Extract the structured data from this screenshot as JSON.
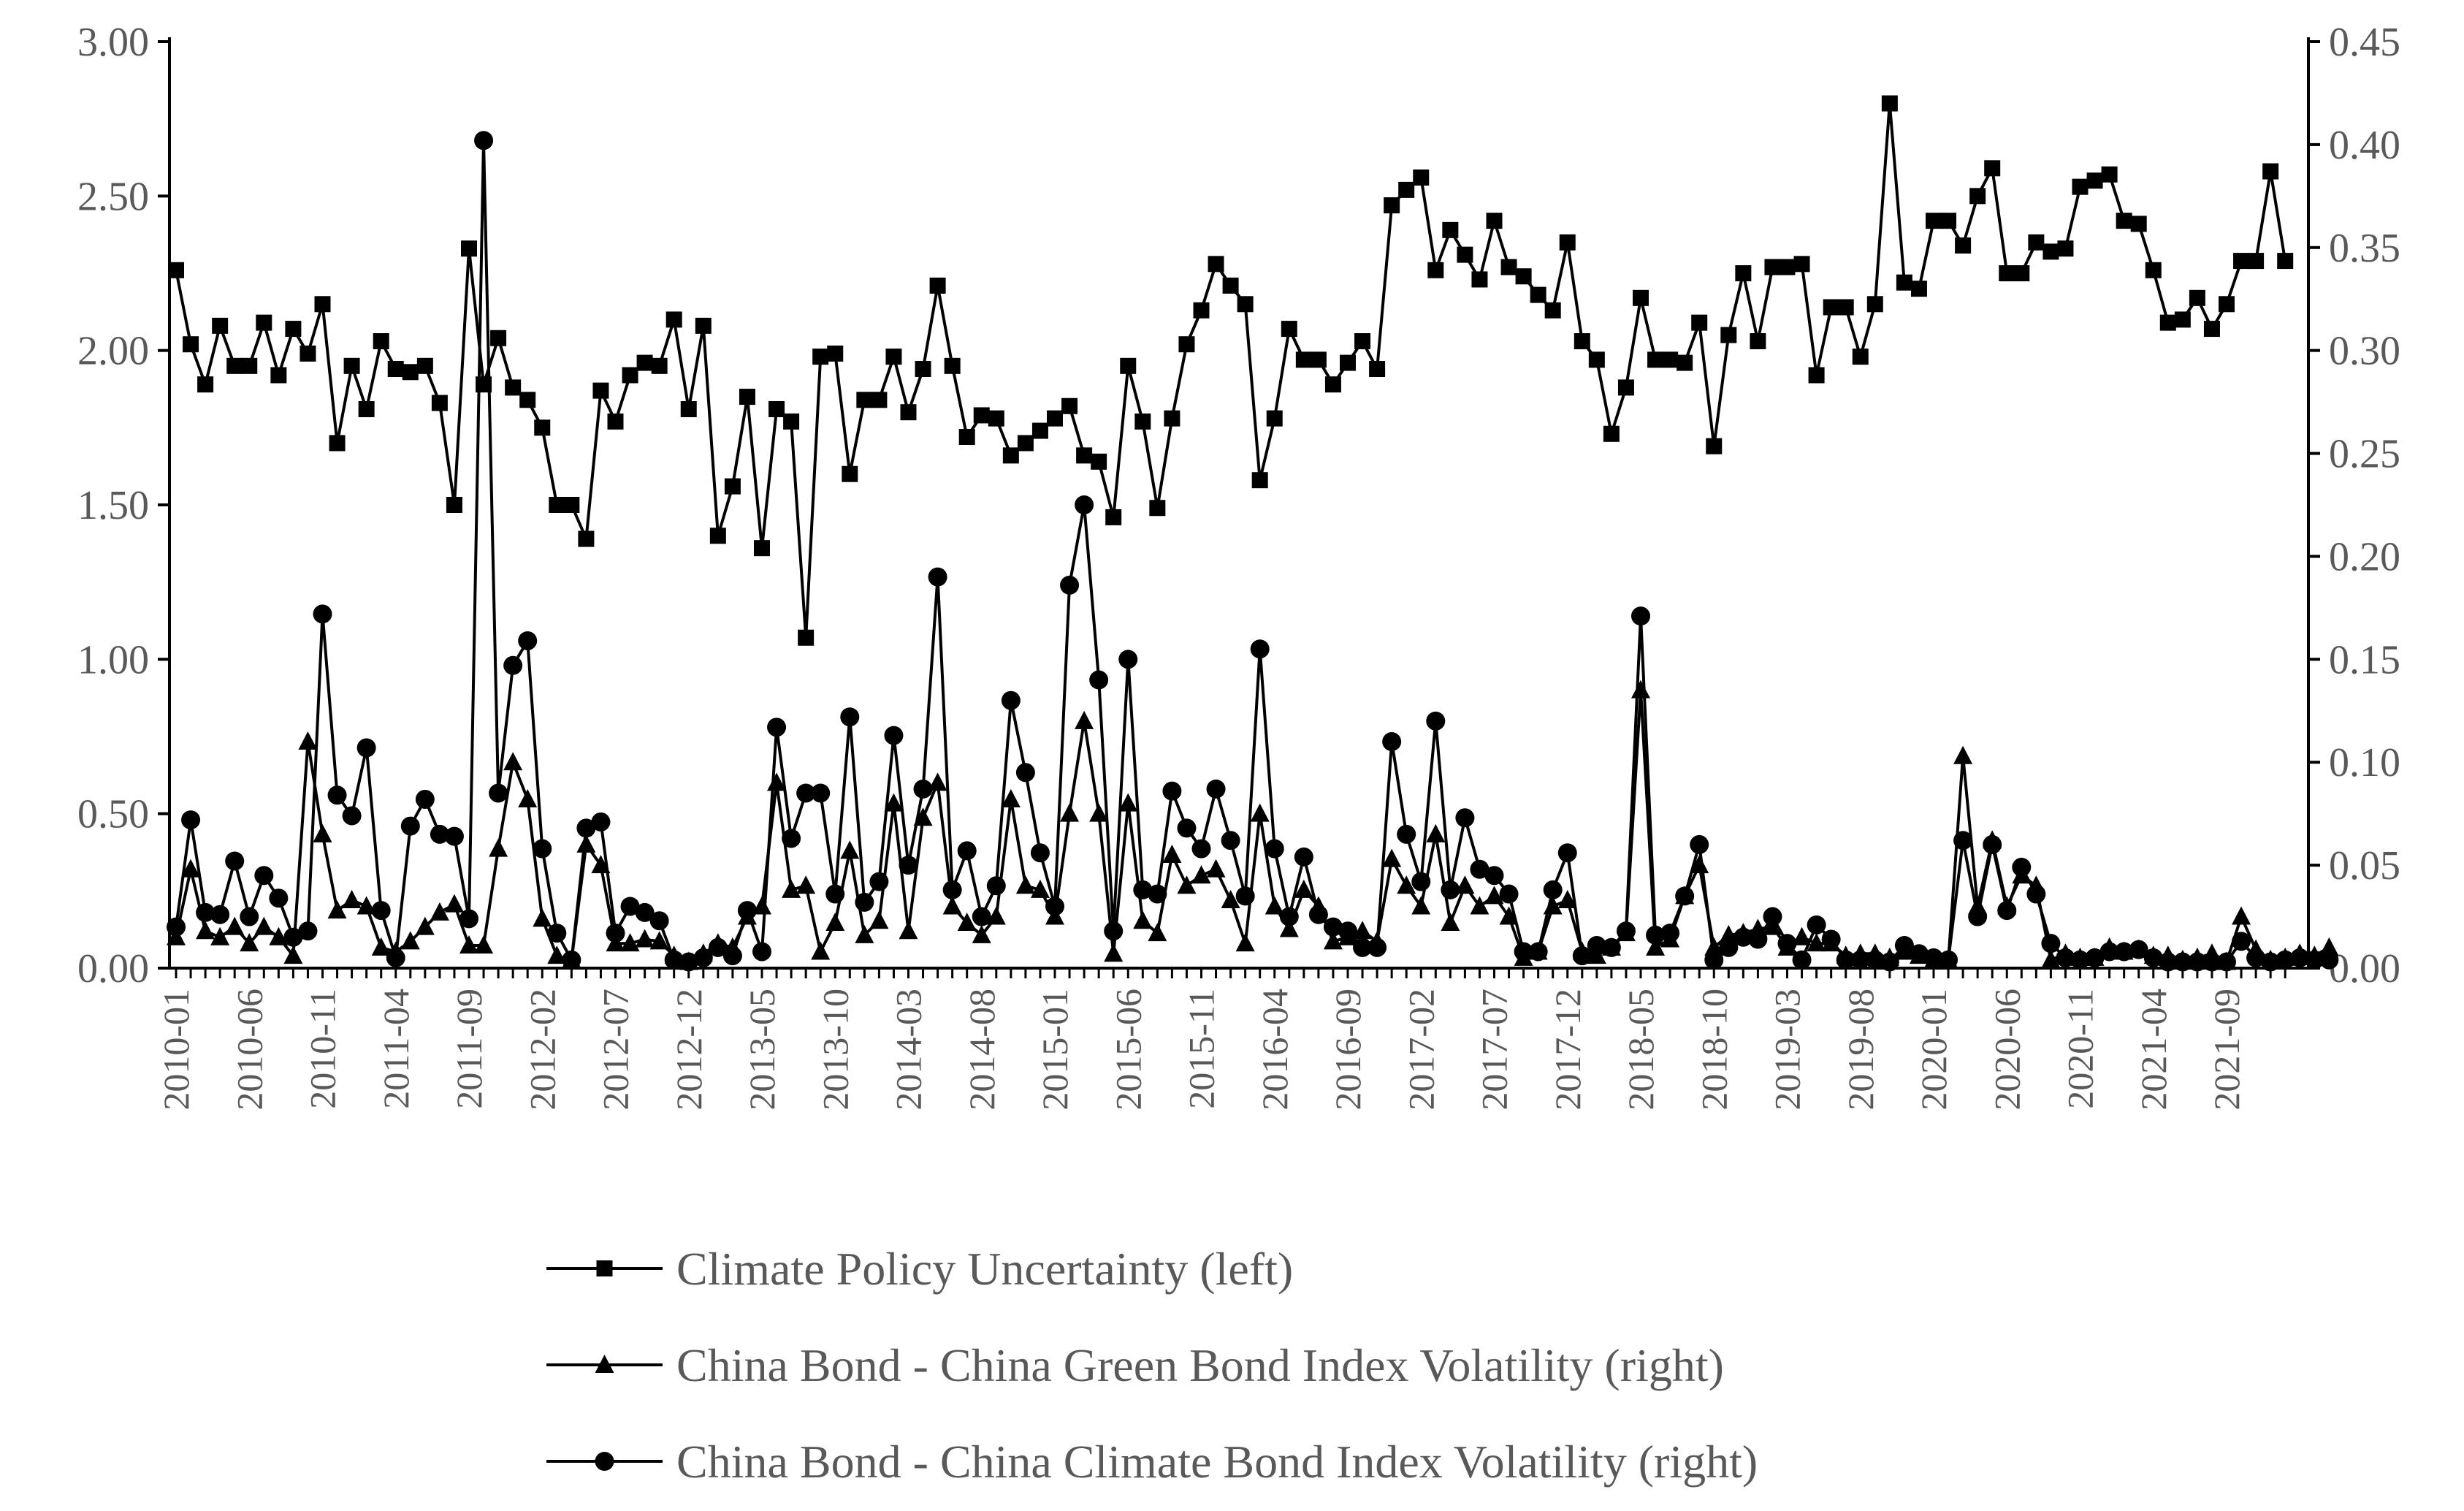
{
  "chart_data": {
    "type": "line",
    "title": "",
    "x_start": "2010-01",
    "x_end": "2021-12",
    "x_tick_labels": [
      "2010-01",
      "2010-06",
      "2010-11",
      "2011-04",
      "2011-09",
      "2012-02",
      "2012-07",
      "2012-12",
      "2013-05",
      "2013-10",
      "2014-03",
      "2014-08",
      "2015-01",
      "2015-06",
      "2015-11",
      "2016-04",
      "2016-09",
      "2017-02",
      "2017-07",
      "2017-12",
      "2018-05",
      "2018-10",
      "2019-03",
      "2019-08",
      "2020-01",
      "2020-06",
      "2020-11",
      "2021-04",
      "2021-09"
    ],
    "y_left": {
      "min": 0,
      "max": 3,
      "ticks": [
        "0.00",
        "0.50",
        "1.00",
        "1.50",
        "2.00",
        "2.50",
        "3.00"
      ]
    },
    "y_right": {
      "min": 0,
      "max": 0.45,
      "ticks": [
        "0.00",
        "0.05",
        "0.10",
        "0.15",
        "0.20",
        "0.25",
        "0.30",
        "0.35",
        "0.40",
        "0.45"
      ]
    },
    "series": [
      {
        "name": "Climate Policy Uncertainty (left)",
        "axis": "left",
        "marker": "square",
        "values": [
          2.26,
          2.02,
          1.89,
          2.08,
          1.95,
          1.95,
          2.09,
          1.92,
          2.07,
          1.99,
          2.15,
          1.7,
          1.95,
          1.81,
          2.03,
          1.94,
          1.93,
          1.95,
          1.83,
          1.5,
          2.33,
          1.89,
          2.04,
          1.88,
          1.84,
          1.75,
          1.5,
          1.5,
          1.39,
          1.87,
          1.77,
          1.92,
          1.96,
          1.95,
          2.1,
          1.81,
          2.08,
          1.4,
          1.56,
          1.85,
          1.36,
          1.81,
          1.77,
          1.07,
          1.98,
          1.99,
          1.6,
          1.84,
          1.84,
          1.98,
          1.8,
          1.94,
          2.21,
          1.95,
          1.72,
          1.79,
          1.78,
          1.66,
          1.7,
          1.74,
          1.78,
          1.82,
          1.66,
          1.64,
          1.46,
          1.95,
          1.77,
          1.49,
          1.78,
          2.02,
          2.13,
          2.28,
          2.21,
          2.15,
          1.58,
          1.78,
          2.07,
          1.97,
          1.97,
          1.89,
          1.96,
          2.03,
          1.94,
          2.47,
          2.52,
          2.56,
          2.26,
          2.39,
          2.31,
          2.23,
          2.42,
          2.27,
          2.24,
          2.18,
          2.13,
          2.35,
          2.03,
          1.97,
          1.73,
          1.88,
          2.17,
          1.97,
          1.97,
          1.96,
          2.09,
          1.69,
          2.05,
          2.25,
          2.03,
          2.27,
          2.27,
          2.28,
          1.92,
          2.14,
          2.14,
          1.98,
          2.15,
          2.8,
          2.22,
          2.2,
          2.42,
          2.42,
          2.34,
          2.5,
          2.59,
          2.25,
          2.25,
          2.35,
          2.32,
          2.33,
          2.53,
          2.55,
          2.57,
          2.42,
          2.41,
          2.26,
          2.09,
          2.1,
          2.17,
          2.07,
          2.15,
          2.29,
          2.29,
          2.58,
          2.29
        ]
      },
      {
        "name": "China Bond - China Green Bond Index Volatility (right)",
        "axis": "right",
        "marker": "triangle",
        "values": [
          0.015,
          0.048,
          0.018,
          0.015,
          0.02,
          0.012,
          0.02,
          0.015,
          0.006,
          0.11,
          0.065,
          0.028,
          0.033,
          0.03,
          0.01,
          0.008,
          0.013,
          0.02,
          0.027,
          0.031,
          0.011,
          0.011,
          0.058,
          0.1,
          0.082,
          0.024,
          0.006,
          0.004,
          0.06,
          0.05,
          0.012,
          0.012,
          0.014,
          0.013,
          0.006,
          0.003,
          0.007,
          0.012,
          0.01,
          0.025,
          0.03,
          0.09,
          0.038,
          0.04,
          0.008,
          0.022,
          0.057,
          0.016,
          0.023,
          0.08,
          0.018,
          0.073,
          0.09,
          0.03,
          0.022,
          0.016,
          0.025,
          0.082,
          0.04,
          0.038,
          0.025,
          0.075,
          0.12,
          0.075,
          0.007,
          0.08,
          0.023,
          0.017,
          0.055,
          0.04,
          0.045,
          0.048,
          0.033,
          0.012,
          0.075,
          0.03,
          0.019,
          0.038,
          0.03,
          0.013,
          0.015,
          0.018,
          0.013,
          0.053,
          0.04,
          0.03,
          0.065,
          0.022,
          0.04,
          0.03,
          0.035,
          0.025,
          0.005,
          0.008,
          0.03,
          0.033,
          0.008,
          0.006,
          0.01,
          0.017,
          0.135,
          0.01,
          0.014,
          0.035,
          0.05,
          0.01,
          0.016,
          0.017,
          0.019,
          0.02,
          0.01,
          0.015,
          0.012,
          0.012,
          0.006,
          0.007,
          0.007,
          0.005,
          0.008,
          0.006,
          0.004,
          0.004,
          0.103,
          0.03,
          0.062,
          0.03,
          0.045,
          0.04,
          0.004,
          0.007,
          0.005,
          0.005,
          0.01,
          0.008,
          0.009,
          0.006,
          0.006,
          0.004,
          0.005,
          0.007,
          0.003,
          0.025,
          0.009,
          0.004,
          0.005,
          0.007,
          0.006,
          0.01
        ]
      },
      {
        "name": "China Bond - China Climate Bond Index Volatility (right)",
        "axis": "right",
        "marker": "circle",
        "values": [
          0.02,
          0.072,
          0.027,
          0.026,
          0.052,
          0.025,
          0.045,
          0.034,
          0.015,
          0.018,
          0.172,
          0.084,
          0.074,
          0.107,
          0.028,
          0.005,
          0.069,
          0.082,
          0.065,
          0.064,
          0.024,
          0.402,
          0.085,
          0.147,
          0.159,
          0.058,
          0.017,
          0.004,
          0.068,
          0.071,
          0.017,
          0.03,
          0.027,
          0.023,
          0.004,
          0.003,
          0.005,
          0.01,
          0.006,
          0.028,
          0.008,
          0.117,
          0.063,
          0.085,
          0.085,
          0.036,
          0.122,
          0.032,
          0.042,
          0.113,
          0.05,
          0.087,
          0.19,
          0.038,
          0.057,
          0.025,
          0.04,
          0.13,
          0.095,
          0.056,
          0.03,
          0.186,
          0.225,
          0.14,
          0.018,
          0.15,
          0.038,
          0.036,
          0.086,
          0.068,
          0.058,
          0.087,
          0.062,
          0.035,
          0.155,
          0.058,
          0.025,
          0.054,
          0.026,
          0.02,
          0.018,
          0.01,
          0.01,
          0.11,
          0.065,
          0.042,
          0.12,
          0.038,
          0.073,
          0.048,
          0.045,
          0.036,
          0.008,
          0.008,
          0.038,
          0.056,
          0.006,
          0.011,
          0.01,
          0.018,
          0.171,
          0.016,
          0.017,
          0.035,
          0.06,
          0.004,
          0.01,
          0.015,
          0.014,
          0.025,
          0.012,
          0.004,
          0.021,
          0.014,
          0.004,
          0.004,
          0.004,
          0.003,
          0.011,
          0.007,
          0.005,
          0.004,
          0.062,
          0.025,
          0.06,
          0.028,
          0.049,
          0.036,
          0.012,
          0.005,
          0.004,
          0.005,
          0.008,
          0.008,
          0.009,
          0.005,
          0.003,
          0.003,
          0.003,
          0.003,
          0.003,
          0.013,
          0.005,
          0.003,
          0.004,
          0.005,
          0.004,
          0.004
        ]
      }
    ],
    "legend_position": "bottom-center"
  }
}
